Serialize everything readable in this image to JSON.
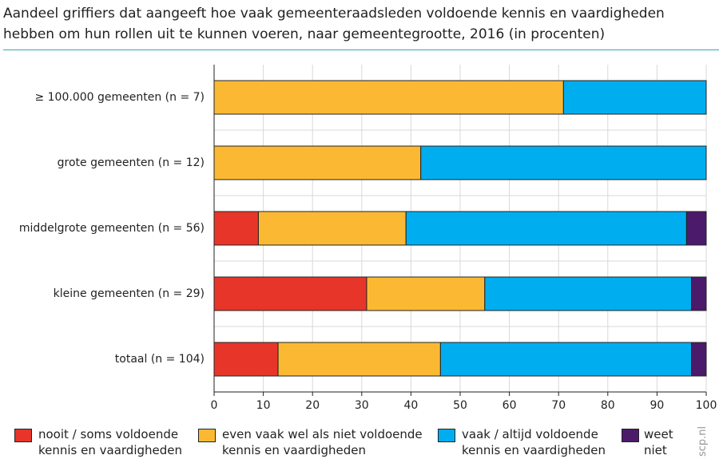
{
  "chart_data": {
    "type": "stacked-barh",
    "title": "Aandeel griffiers dat aangeeft hoe vaak gemeenteraadsleden voldoende kennis en vaardigheden hebben om hun rollen uit te kunnen voeren, naar gemeentegrootte, 2016 (in procenten)",
    "categories": [
      "≥ 100.000 gemeenten (n = 7)",
      "grote gemeenten (n = 12)",
      "middelgrote gemeenten (n = 56)",
      "kleine gemeenten (n = 29)",
      "totaal (n = 104)"
    ],
    "series": [
      {
        "name": "nooit / soms voldoende kennis en vaardigheden",
        "color": "#e8352a",
        "values": [
          0,
          0,
          9,
          31,
          13
        ]
      },
      {
        "name": "even vaak wel als niet voldoende kennis en vaardigheden",
        "color": "#fbb933",
        "values": [
          71,
          42,
          30,
          24,
          33
        ]
      },
      {
        "name": "vaak / altijd voldoende kennis en vaardigheden",
        "color": "#00aeef",
        "values": [
          29,
          58,
          57,
          42,
          51
        ]
      },
      {
        "name": "weet niet",
        "color": "#4b1a6b",
        "values": [
          0,
          0,
          4,
          3,
          3
        ]
      }
    ],
    "xlim": [
      0,
      100
    ],
    "xticks": [
      0,
      10,
      20,
      30,
      40,
      50,
      60,
      70,
      80,
      90,
      100
    ],
    "grid": true,
    "source": "scp.nl"
  }
}
